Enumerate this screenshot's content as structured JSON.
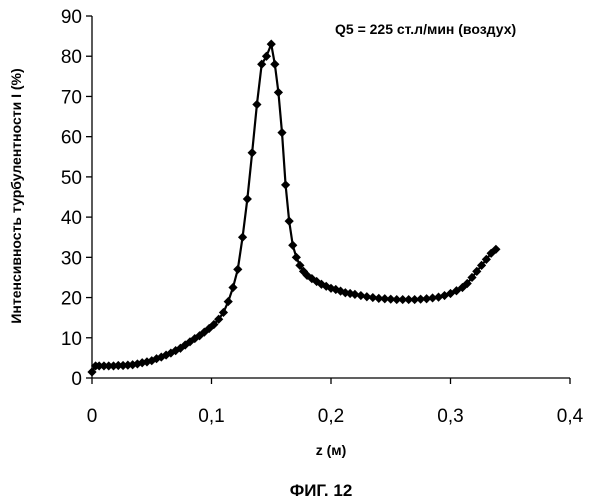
{
  "chart_data": {
    "type": "line",
    "title": "",
    "annotation": "Q5 = 225 ст.л/мин (воздух)",
    "xlabel": "z (м)",
    "ylabel": "Интенсивность турбулентности I (%)",
    "xlim": [
      0,
      0.4
    ],
    "ylim": [
      0,
      90
    ],
    "xticks": [
      0,
      0.1,
      0.2,
      0.3,
      0.4
    ],
    "xtick_labels": [
      "0",
      "0,1",
      "0,2",
      "0,3",
      "0,4"
    ],
    "yticks": [
      0,
      10,
      20,
      30,
      40,
      50,
      60,
      70,
      80,
      90
    ],
    "ytick_labels": [
      "0",
      "10",
      "20",
      "30",
      "40",
      "50",
      "60",
      "70",
      "80",
      "90"
    ],
    "grid": false,
    "legend": "none",
    "marker": "diamond",
    "line_color": "#000000",
    "series": [
      {
        "x": [
          0.0,
          0.003,
          0.006,
          0.01,
          0.014,
          0.018,
          0.022,
          0.026,
          0.03,
          0.034,
          0.038,
          0.042,
          0.046,
          0.05,
          0.054,
          0.058,
          0.062,
          0.066,
          0.07,
          0.074,
          0.078,
          0.082,
          0.086,
          0.09,
          0.094,
          0.098,
          0.102,
          0.106,
          0.11,
          0.114,
          0.118,
          0.122,
          0.126,
          0.13,
          0.134,
          0.138,
          0.142,
          0.146,
          0.15,
          0.153,
          0.156,
          0.159,
          0.162,
          0.165,
          0.168,
          0.171,
          0.174,
          0.177,
          0.18,
          0.184,
          0.188,
          0.192,
          0.196,
          0.2,
          0.204,
          0.208,
          0.212,
          0.216,
          0.22,
          0.225,
          0.23,
          0.235,
          0.24,
          0.245,
          0.25,
          0.255,
          0.26,
          0.265,
          0.27,
          0.275,
          0.28,
          0.285,
          0.29,
          0.295,
          0.3,
          0.305,
          0.31,
          0.314,
          0.318,
          0.322,
          0.326,
          0.33,
          0.334,
          0.338
        ],
        "y": [
          1.5,
          3.0,
          3.0,
          3.0,
          3.0,
          3.0,
          3.1,
          3.1,
          3.2,
          3.3,
          3.5,
          3.8,
          4.0,
          4.3,
          4.8,
          5.2,
          5.7,
          6.2,
          6.8,
          7.4,
          8.2,
          9.0,
          9.8,
          10.5,
          11.4,
          12.3,
          13.3,
          14.6,
          16.3,
          19.0,
          22.5,
          27.0,
          35.0,
          44.5,
          56.0,
          68.0,
          78.0,
          80.0,
          83.0,
          78.0,
          71.0,
          61.0,
          48.0,
          39.0,
          33.0,
          30.0,
          28.0,
          26.5,
          25.5,
          24.7,
          24.0,
          23.3,
          22.8,
          22.3,
          22.0,
          21.6,
          21.2,
          21.0,
          20.8,
          20.5,
          20.2,
          20.0,
          19.8,
          19.7,
          19.6,
          19.5,
          19.5,
          19.5,
          19.5,
          19.6,
          19.7,
          19.9,
          20.1,
          20.5,
          21.0,
          21.7,
          22.5,
          23.5,
          25.0,
          26.5,
          28.0,
          29.5,
          31.0,
          32.0
        ]
      }
    ]
  },
  "caption": "ФИГ. 12"
}
